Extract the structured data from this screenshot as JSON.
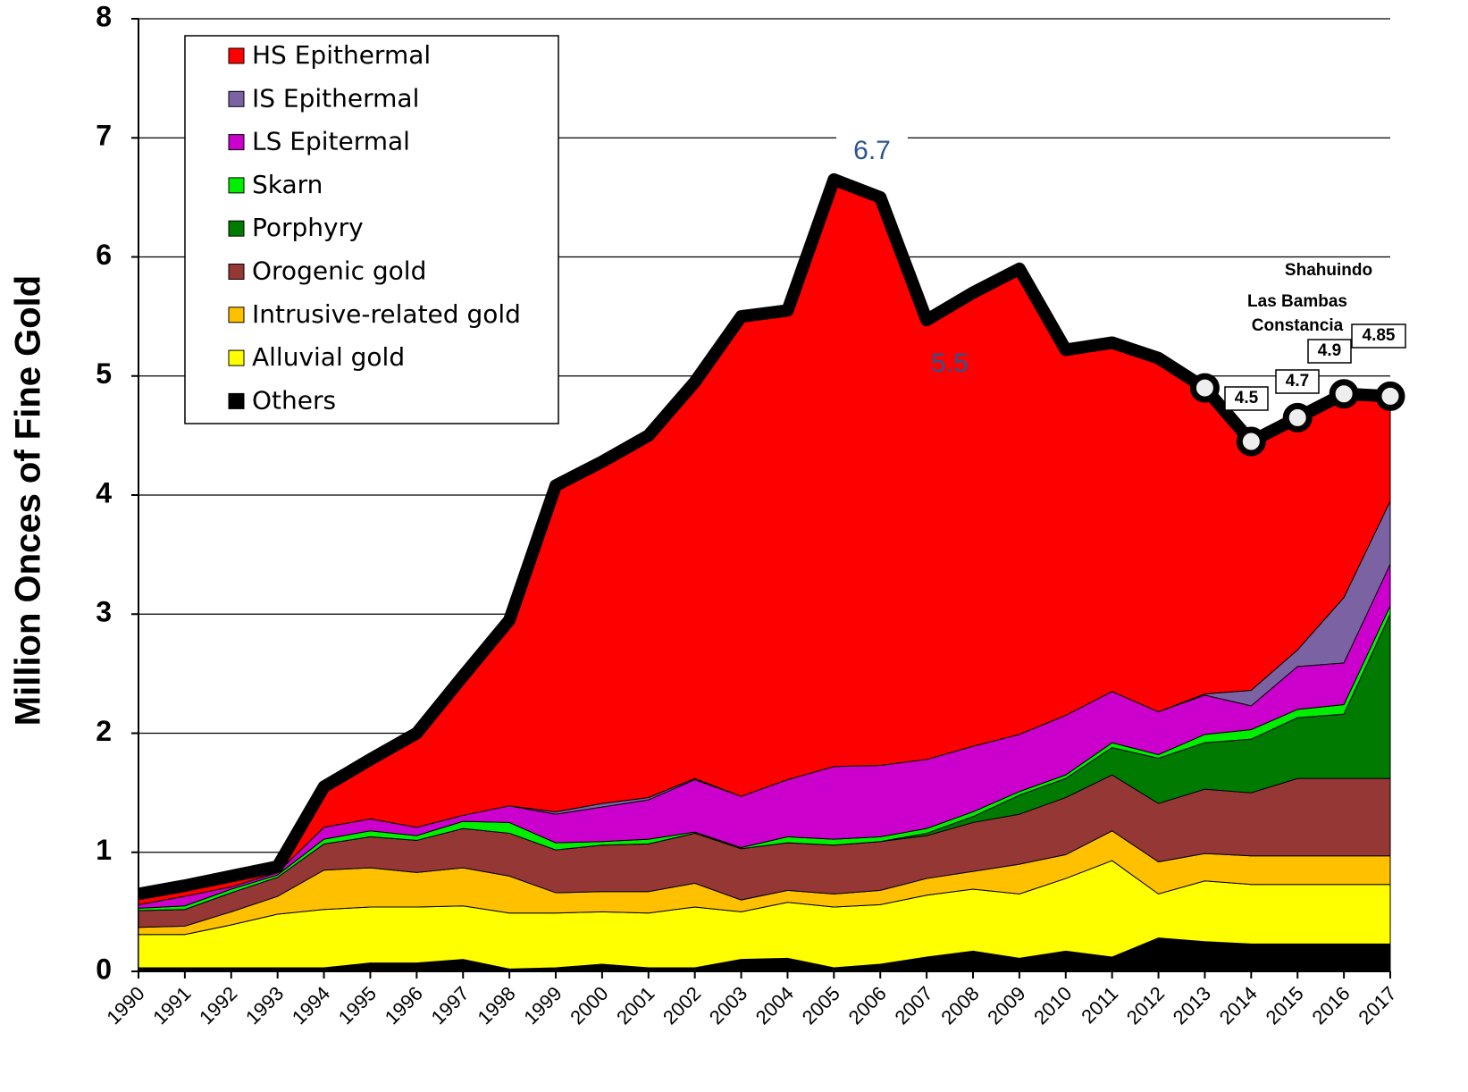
{
  "chart_data": {
    "type": "stacked-area",
    "y_label": "Million Onces of Fine  Gold",
    "categories": [
      "1990",
      "1991",
      "1992",
      "1993",
      "1994",
      "1995",
      "1996",
      "1997",
      "1998",
      "1999",
      "2000",
      "2001",
      "2002",
      "2003",
      "2004",
      "2005",
      "2006",
      "2007",
      "2008",
      "2009",
      "2010",
      "2011",
      "2012",
      "2013",
      "2014",
      "2015",
      "2016",
      "2017"
    ],
    "ylim": [
      0,
      8
    ],
    "yticks": [
      0,
      1,
      2,
      3,
      4,
      5,
      6,
      7,
      8
    ],
    "grid": true,
    "legend": "upper left",
    "series": [
      {
        "name": "HS Epithermal",
        "color": "#ff0000",
        "values": [
          0.09,
          0.09,
          0.09,
          0.05,
          0.34,
          0.5,
          0.79,
          1.17,
          1.56,
          2.74,
          2.87,
          3.04,
          3.33,
          4.03,
          3.94,
          4.93,
          4.77,
          3.69,
          3.81,
          3.91,
          3.07,
          2.93,
          2.97,
          2.57,
          2.09,
          1.95,
          1.71,
          0.88
        ]
      },
      {
        "name": "IS Epithermal",
        "color": "#7b62a3",
        "values": [
          0,
          0,
          0,
          0,
          0,
          0,
          0,
          0,
          0,
          0.02,
          0.03,
          0.02,
          0.01,
          0,
          0,
          0,
          0,
          0,
          0,
          0,
          0,
          0,
          0,
          0.01,
          0.13,
          0.14,
          0.55,
          0.53
        ]
      },
      {
        "name": "LS Epitermal",
        "color": "#cc00cc",
        "values": [
          0.03,
          0.08,
          0.02,
          0.02,
          0.1,
          0.1,
          0.07,
          0.05,
          0.14,
          0.24,
          0.29,
          0.33,
          0.44,
          0.43,
          0.48,
          0.61,
          0.6,
          0.58,
          0.55,
          0.48,
          0.5,
          0.43,
          0.36,
          0.33,
          0.2,
          0.36,
          0.35,
          0.35
        ]
      },
      {
        "name": "Skarn",
        "color": "#00ee00",
        "values": [
          0.02,
          0.03,
          0.03,
          0.02,
          0.04,
          0.05,
          0.04,
          0.06,
          0.09,
          0.06,
          0.03,
          0.04,
          0.01,
          0.01,
          0.05,
          0.05,
          0.04,
          0.04,
          0.04,
          0.03,
          0.03,
          0.04,
          0.03,
          0.07,
          0.08,
          0.07,
          0.08,
          0.07
        ]
      },
      {
        "name": "Porphyry",
        "color": "#007a00",
        "values": [
          0,
          0,
          0,
          0,
          0,
          0,
          0,
          0,
          0,
          0,
          0,
          0,
          0,
          0,
          0,
          0,
          0,
          0.02,
          0.05,
          0.16,
          0.16,
          0.23,
          0.38,
          0.39,
          0.45,
          0.51,
          0.54,
          1.38
        ]
      },
      {
        "name": "Orogenic gold",
        "color": "#953735",
        "values": [
          0.14,
          0.14,
          0.16,
          0.16,
          0.22,
          0.26,
          0.27,
          0.33,
          0.36,
          0.36,
          0.39,
          0.4,
          0.42,
          0.43,
          0.4,
          0.41,
          0.41,
          0.36,
          0.41,
          0.42,
          0.48,
          0.47,
          0.49,
          0.54,
          0.53,
          0.65,
          0.65,
          0.65
        ]
      },
      {
        "name": "Intrusive-related gold",
        "color": "#ffc000",
        "values": [
          0.06,
          0.07,
          0.11,
          0.15,
          0.33,
          0.33,
          0.29,
          0.32,
          0.31,
          0.17,
          0.17,
          0.18,
          0.2,
          0.1,
          0.1,
          0.11,
          0.12,
          0.14,
          0.15,
          0.25,
          0.2,
          0.25,
          0.27,
          0.23,
          0.24,
          0.24,
          0.24,
          0.24
        ]
      },
      {
        "name": "Alluvial gold",
        "color": "#ffff00",
        "values": [
          0.28,
          0.28,
          0.36,
          0.45,
          0.49,
          0.47,
          0.47,
          0.45,
          0.47,
          0.46,
          0.44,
          0.46,
          0.51,
          0.4,
          0.47,
          0.51,
          0.5,
          0.52,
          0.52,
          0.54,
          0.61,
          0.81,
          0.37,
          0.51,
          0.5,
          0.5,
          0.5,
          0.5
        ]
      },
      {
        "name": "Others",
        "color": "#000000",
        "values": [
          0.03,
          0.03,
          0.03,
          0.03,
          0.03,
          0.07,
          0.07,
          0.1,
          0.02,
          0.03,
          0.06,
          0.03,
          0.03,
          0.1,
          0.11,
          0.03,
          0.06,
          0.12,
          0.17,
          0.11,
          0.17,
          0.12,
          0.28,
          0.25,
          0.23,
          0.23,
          0.23,
          0.23
        ]
      }
    ],
    "annotations": [
      "6.7",
      "5.5",
      "Shahuindo",
      "Las Bambas",
      "Constancia",
      "4.5",
      "4.7",
      "4.9",
      "4.85"
    ]
  }
}
